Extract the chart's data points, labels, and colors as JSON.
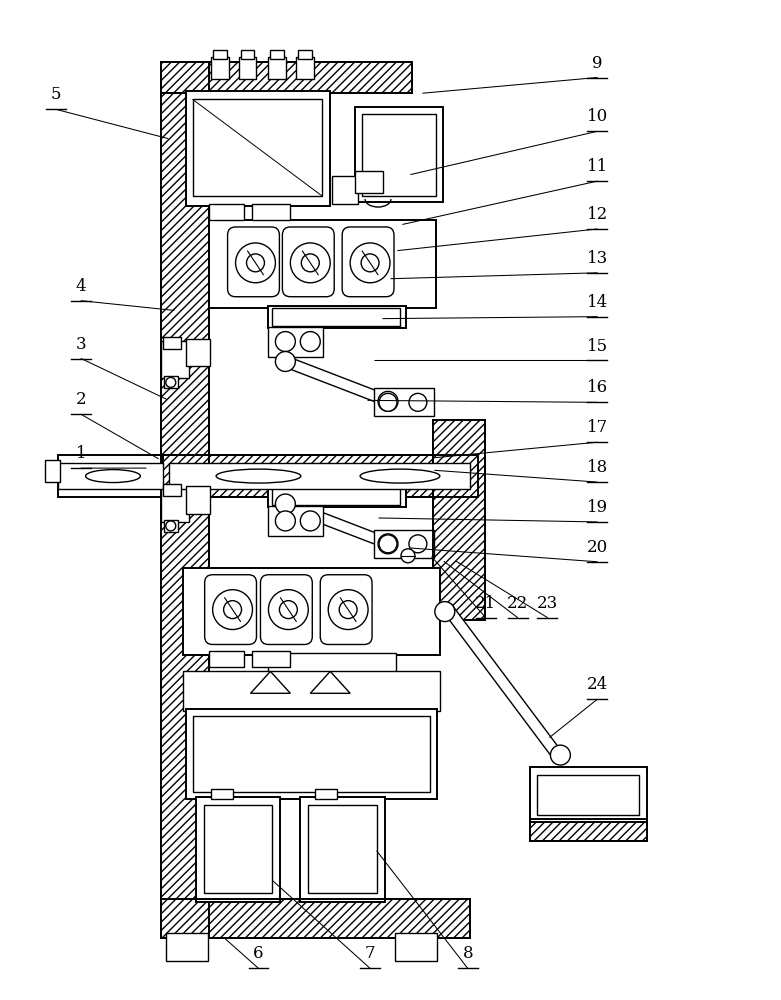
{
  "bg_color": "#ffffff",
  "lc": "#000000",
  "figsize": [
    7.81,
    10.0
  ],
  "dpi": 100,
  "labels": [
    [
      1,
      80,
      468,
      148,
      468
    ],
    [
      2,
      80,
      414,
      160,
      460
    ],
    [
      3,
      80,
      358,
      168,
      400
    ],
    [
      4,
      80,
      300,
      176,
      310
    ],
    [
      5,
      55,
      108,
      170,
      138
    ],
    [
      6,
      258,
      970,
      222,
      938
    ],
    [
      7,
      370,
      970,
      270,
      880
    ],
    [
      8,
      468,
      970,
      375,
      850
    ],
    [
      9,
      598,
      76,
      420,
      92
    ],
    [
      10,
      598,
      130,
      408,
      174
    ],
    [
      11,
      598,
      180,
      400,
      224
    ],
    [
      12,
      598,
      228,
      395,
      250
    ],
    [
      13,
      598,
      272,
      388,
      278
    ],
    [
      14,
      598,
      316,
      380,
      318
    ],
    [
      15,
      598,
      360,
      372,
      360
    ],
    [
      16,
      598,
      402,
      365,
      400
    ],
    [
      17,
      598,
      442,
      430,
      458
    ],
    [
      18,
      598,
      482,
      432,
      470
    ],
    [
      19,
      598,
      522,
      376,
      518
    ],
    [
      20,
      598,
      562,
      408,
      548
    ],
    [
      21,
      486,
      618,
      430,
      555
    ],
    [
      22,
      518,
      618,
      442,
      560
    ],
    [
      23,
      548,
      618,
      454,
      560
    ],
    [
      24,
      598,
      700,
      548,
      740
    ]
  ]
}
